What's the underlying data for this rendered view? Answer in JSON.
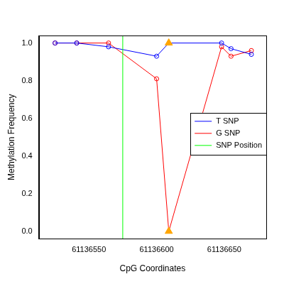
{
  "chart_data": {
    "type": "scatter",
    "x_label": "CpG Coordinates",
    "y_label": "Methylation Frequency",
    "x": [
      61136525,
      61136541,
      61136564.5,
      61136600,
      61136609,
      61136648,
      61136655,
      61136670
    ],
    "series": [
      {
        "name": "T SNP",
        "color": "#0000FF",
        "line_style": "solid",
        "values": [
          1.0,
          1.0,
          0.98,
          0.93,
          1.0,
          1.0,
          0.97,
          0.94
        ],
        "markers": [
          "circle",
          "circle",
          "circle",
          "circle",
          "triangle",
          "circle",
          "circle",
          "circle"
        ],
        "colors": [
          "#0000FF",
          "#0000FF",
          "#0000FF",
          "#0000FF",
          "#FFA500",
          "#0000FF",
          "#0000FF",
          "#0000FF"
        ]
      },
      {
        "name": "G SNP",
        "color": "#FF0000",
        "line_style": "solid",
        "values": [
          1.0,
          1.0,
          1.0,
          0.81,
          0.0,
          0.98,
          0.93,
          0.96
        ],
        "markers": [
          "circle",
          "circle",
          "circle",
          "circle",
          "triangle",
          "circle",
          "circle",
          "circle"
        ],
        "colors": [
          "#FF0000",
          "#FF0000",
          "#FF0000",
          "#FF0000",
          "#FFA500",
          "#FF0000",
          "#FF0000",
          "#FF0000"
        ]
      }
    ],
    "vertical_line": {
      "name": "SNP Position",
      "color": "#00FF00",
      "x": 61136575
    },
    "xlim": [
      61136513,
      61136681
    ],
    "xticks": [
      61136550,
      61136600,
      61136650
    ],
    "ylim": [
      -0.04,
      1.04
    ],
    "yticks": [
      {
        "value": 0,
        "label": "0.0"
      },
      {
        "value": 0.2,
        "label": "0.2"
      },
      {
        "value": 0.4,
        "label": "0.4"
      },
      {
        "value": 0.6,
        "label": "0.6"
      },
      {
        "value": 0.8,
        "label": "0.8"
      },
      {
        "value": 1,
        "label": "1.0"
      }
    ],
    "grid": false,
    "legend": "right"
  }
}
